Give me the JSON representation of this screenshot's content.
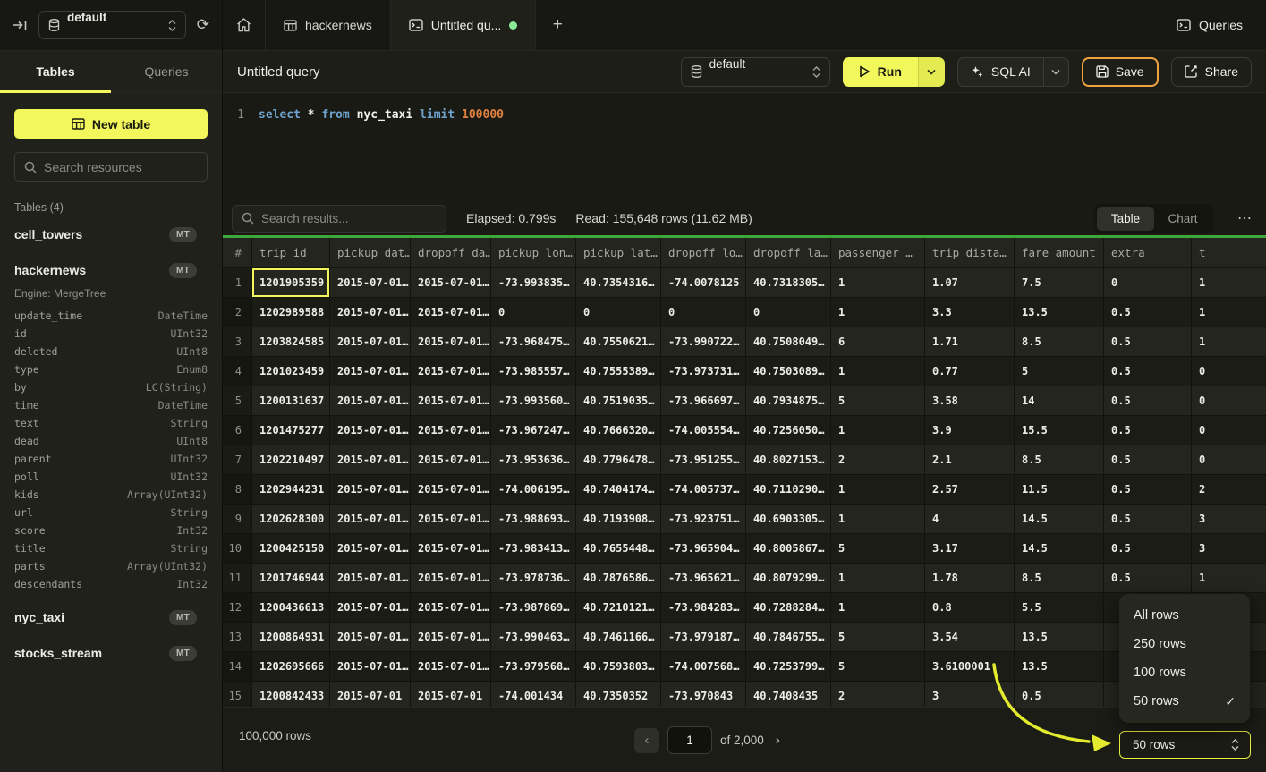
{
  "icons": {
    "refresh": "⟳",
    "new_tab_plus": "+",
    "more": "⋯",
    "check": "✓",
    "pager_prev": "‹",
    "pager_next": "›"
  },
  "topbar": {
    "database_selector": "default",
    "queries_button": "Queries"
  },
  "sidebar": {
    "tabs": {
      "tables": "Tables",
      "queries": "Queries"
    },
    "new_table_button": "New table",
    "search_placeholder": "Search resources",
    "section_label": "Tables (4)",
    "tables": [
      {
        "name": "cell_towers",
        "badge": "MT"
      },
      {
        "name": "hackernews",
        "badge": "MT",
        "engine": "Engine: MergeTree",
        "columns": [
          {
            "name": "update_time",
            "type": "DateTime"
          },
          {
            "name": "id",
            "type": "UInt32"
          },
          {
            "name": "deleted",
            "type": "UInt8"
          },
          {
            "name": "type",
            "type": "Enum8"
          },
          {
            "name": "by",
            "type": "LC(String)"
          },
          {
            "name": "time",
            "type": "DateTime"
          },
          {
            "name": "text",
            "type": "String"
          },
          {
            "name": "dead",
            "type": "UInt8"
          },
          {
            "name": "parent",
            "type": "UInt32"
          },
          {
            "name": "poll",
            "type": "UInt32"
          },
          {
            "name": "kids",
            "type": "Array(UInt32)"
          },
          {
            "name": "url",
            "type": "String"
          },
          {
            "name": "score",
            "type": "Int32"
          },
          {
            "name": "title",
            "type": "String"
          },
          {
            "name": "parts",
            "type": "Array(UInt32)"
          },
          {
            "name": "descendants",
            "type": "Int32"
          }
        ]
      },
      {
        "name": "nyc_taxi",
        "badge": "MT"
      },
      {
        "name": "stocks_stream",
        "badge": "MT"
      }
    ]
  },
  "tabbar": {
    "tabs": [
      {
        "label": "hackernews",
        "active": false
      },
      {
        "label": "Untitled qu...",
        "active": true,
        "unsaved": true
      }
    ]
  },
  "toolbar": {
    "title": "Untitled query",
    "database_selector": "default",
    "run_button": "Run",
    "sql_ai_button": "SQL AI",
    "save_button": "Save",
    "share_button": "Share"
  },
  "editor": {
    "line_number": "1",
    "code_tokens": [
      {
        "text": "select",
        "kind": "keyword"
      },
      {
        "text": " * ",
        "kind": "plain"
      },
      {
        "text": "from",
        "kind": "keyword"
      },
      {
        "text": " ",
        "kind": "plain"
      },
      {
        "text": "nyc_taxi",
        "kind": "identifier"
      },
      {
        "text": " ",
        "kind": "plain"
      },
      {
        "text": "limit",
        "kind": "keyword"
      },
      {
        "text": " ",
        "kind": "plain"
      },
      {
        "text": "100000",
        "kind": "number"
      }
    ]
  },
  "results": {
    "search_placeholder": "Search results...",
    "elapsed": "Elapsed: 0.799s",
    "read": "Read: 155,648 rows (11.62 MB)",
    "view_toggle": {
      "table": "Table",
      "chart": "Chart",
      "active": "Table"
    },
    "table": {
      "columns": [
        "#",
        "trip_id",
        "pickup_dat…",
        "dropoff_da…",
        "pickup_lon…",
        "pickup_lat…",
        "dropoff_lo…",
        "dropoff_la…",
        "passenger_…",
        "trip_dista…",
        "fare_amount",
        "extra",
        "t"
      ],
      "selected": {
        "row": 0,
        "col": 1
      },
      "rows": [
        [
          "1",
          "1201905359",
          "2015-07-01…",
          "2015-07-01…",
          "-73.993835…",
          "40.7354316…",
          "-74.0078125",
          "40.7318305…",
          "1",
          "1.07",
          "7.5",
          "0",
          "1"
        ],
        [
          "2",
          "1202989588",
          "2015-07-01…",
          "2015-07-01…",
          "0",
          "0",
          "0",
          "0",
          "1",
          "3.3",
          "13.5",
          "0.5",
          "1"
        ],
        [
          "3",
          "1203824585",
          "2015-07-01…",
          "2015-07-01…",
          "-73.968475…",
          "40.7550621…",
          "-73.990722…",
          "40.7508049…",
          "6",
          "1.71",
          "8.5",
          "0.5",
          "1"
        ],
        [
          "4",
          "1201023459",
          "2015-07-01…",
          "2015-07-01…",
          "-73.985557…",
          "40.7555389…",
          "-73.973731…",
          "40.7503089…",
          "1",
          "0.77",
          "5",
          "0.5",
          "0"
        ],
        [
          "5",
          "1200131637",
          "2015-07-01…",
          "2015-07-01…",
          "-73.993560…",
          "40.7519035…",
          "-73.966697…",
          "40.7934875…",
          "5",
          "3.58",
          "14",
          "0.5",
          "0"
        ],
        [
          "6",
          "1201475277",
          "2015-07-01…",
          "2015-07-01…",
          "-73.967247…",
          "40.7666320…",
          "-74.005554…",
          "40.7256050…",
          "1",
          "3.9",
          "15.5",
          "0.5",
          "0"
        ],
        [
          "7",
          "1202210497",
          "2015-07-01…",
          "2015-07-01…",
          "-73.953636…",
          "40.7796478…",
          "-73.951255…",
          "40.8027153…",
          "2",
          "2.1",
          "8.5",
          "0.5",
          "0"
        ],
        [
          "8",
          "1202944231",
          "2015-07-01…",
          "2015-07-01…",
          "-74.006195…",
          "40.7404174…",
          "-74.005737…",
          "40.7110290…",
          "1",
          "2.57",
          "11.5",
          "0.5",
          "2"
        ],
        [
          "9",
          "1202628300",
          "2015-07-01…",
          "2015-07-01…",
          "-73.988693…",
          "40.7193908…",
          "-73.923751…",
          "40.6903305…",
          "1",
          "4",
          "14.5",
          "0.5",
          "3"
        ],
        [
          "10",
          "1200425150",
          "2015-07-01…",
          "2015-07-01…",
          "-73.983413…",
          "40.7655448…",
          "-73.965904…",
          "40.8005867…",
          "5",
          "3.17",
          "14.5",
          "0.5",
          "3"
        ],
        [
          "11",
          "1201746944",
          "2015-07-01…",
          "2015-07-01…",
          "-73.978736…",
          "40.7876586…",
          "-73.965621…",
          "40.8079299…",
          "1",
          "1.78",
          "8.5",
          "0.5",
          "1"
        ],
        [
          "12",
          "1200436613",
          "2015-07-01…",
          "2015-07-01…",
          "-73.987869…",
          "40.7210121…",
          "-73.984283…",
          "40.7288284…",
          "1",
          "0.8",
          "5.5",
          "",
          ""
        ],
        [
          "13",
          "1200864931",
          "2015-07-01…",
          "2015-07-01…",
          "-73.990463…",
          "40.7461166…",
          "-73.979187…",
          "40.7846755…",
          "5",
          "3.54",
          "13.5",
          "",
          ""
        ],
        [
          "14",
          "1202695666",
          "2015-07-01…",
          "2015-07-01…",
          "-73.979568…",
          "40.7593803…",
          "-74.007568…",
          "40.7253799…",
          "5",
          "3.6100001",
          "13.5",
          "",
          ""
        ],
        [
          "15",
          "1200842433",
          "2015-07-01",
          "2015-07-01",
          "-74.001434",
          "40.7350352",
          "-73.970843",
          "40.7408435",
          "2",
          "3",
          "0.5",
          "",
          ""
        ]
      ]
    }
  },
  "footer": {
    "total_rows": "100,000 rows",
    "page_value": "1",
    "page_of": "of 2,000",
    "page_size": "50 rows"
  },
  "page_size_menu": {
    "items": [
      {
        "label": "All rows",
        "checked": false
      },
      {
        "label": "250 rows",
        "checked": false
      },
      {
        "label": "100 rows",
        "checked": false
      },
      {
        "label": "50 rows",
        "checked": true
      }
    ]
  },
  "colors": {
    "accent_yellow": "#f2f75b",
    "save_border_orange": "#f0a43c",
    "progress_green": "#3fa63c",
    "unsaved_dot_green": "#8ce99a",
    "keyword_blue": "#6ea3cf",
    "number_orange": "#e0823f",
    "annotation_arrow_yellow": "#e4eb2e"
  }
}
